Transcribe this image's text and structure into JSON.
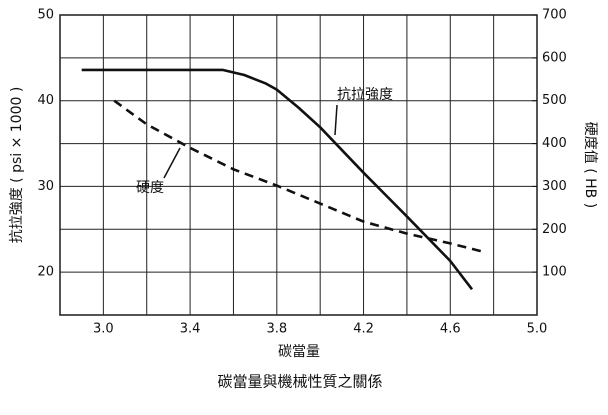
{
  "chart_data": {
    "type": "line",
    "title": "碳當量與機械性質之關係",
    "xlabel": "碳當量",
    "ylabel": "抗拉強度 ( psi × 1000 )",
    "y2label": "硬度值 ( HB )",
    "xlim": [
      2.8,
      5.0
    ],
    "xticks": [
      {
        "value": 3.0,
        "label": "3.0"
      },
      {
        "value": 3.4,
        "label": "3.4"
      },
      {
        "value": 3.8,
        "label": "3.8"
      },
      {
        "value": 4.2,
        "label": "4.2"
      },
      {
        "value": 4.6,
        "label": "4.6"
      },
      {
        "value": 5.0,
        "label": "5.0"
      }
    ],
    "xgrid": [
      2.8,
      3.2,
      3.6,
      4.0,
      4.4,
      4.8
    ],
    "ylim": [
      15,
      50
    ],
    "yticks": [
      20,
      30,
      40,
      50
    ],
    "ygrid": [
      15,
      25,
      35,
      45
    ],
    "y2lim": [
      0,
      700
    ],
    "y2ticks": [
      100,
      200,
      300,
      400,
      500,
      600,
      700
    ],
    "grid": true,
    "series": [
      {
        "name": "抗拉強度",
        "color": "#111111",
        "dash": false,
        "x": [
          2.9,
          3.55,
          3.65,
          3.75,
          3.8,
          3.9,
          4.0,
          4.2,
          4.4,
          4.6,
          4.7
        ],
        "values": [
          43.6,
          43.6,
          43.0,
          42.0,
          41.3,
          39.2,
          36.9,
          31.6,
          26.5,
          21.3,
          18.0
        ]
      },
      {
        "name": "硬度",
        "color": "#111111",
        "dash": true,
        "axis": "y2",
        "x": [
          3.05,
          3.2,
          3.4,
          3.6,
          3.8,
          4.0,
          4.2,
          4.4,
          4.6,
          4.75
        ],
        "values": [
          500,
          445,
          390,
          340,
          302,
          260,
          218,
          190,
          167,
          148
        ]
      }
    ]
  }
}
